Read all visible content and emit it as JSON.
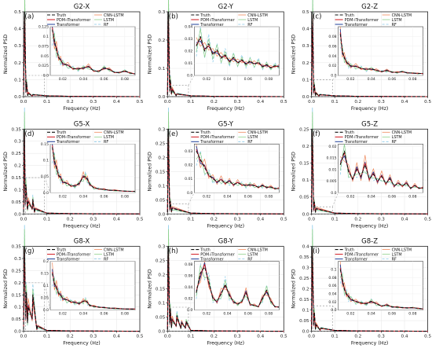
{
  "figure": {
    "x_label": "Frequency (Hz)",
    "y_label": "Normalized PSD",
    "legend": [
      "Truth",
      "PDM-iTransformer",
      "Transformer",
      "CNN-LSTM",
      "LSTM",
      "RF"
    ],
    "colors": {
      "Truth": "#111111",
      "PDM-iTransformer": "#d1141b",
      "Transformer": "#1f3f99",
      "CNN-LSTM": "#f08a5d",
      "LSTM": "#8fd18a",
      "RF": "#87c9e8"
    }
  },
  "chart_data": [
    {
      "type": "line",
      "panel": "(a)",
      "title": "G2-X",
      "xlim": [
        0,
        0.5
      ],
      "ylim": [
        0,
        0.5
      ],
      "yticks": [
        0.0,
        0.1,
        0.2,
        0.3,
        0.4,
        0.5
      ],
      "xticks": [
        0.0,
        0.1,
        0.2,
        0.3,
        0.4,
        0.5
      ],
      "peak": 0.5,
      "peak_freq": 0.005,
      "lines": [
        [
          0.013,
          0.085
        ],
        [
          0.021,
          0.02
        ],
        [
          0.04,
          0.012
        ]
      ],
      "inset": {
        "xlim": [
          0.008,
          0.09
        ],
        "ylim": [
          0,
          0.125
        ],
        "yticks": [
          0.0,
          0.025,
          0.05,
          0.075,
          0.1,
          0.125
        ],
        "xticks": [
          0.02,
          0.04,
          0.06,
          0.08
        ],
        "x": [
          0.01,
          0.012,
          0.014,
          0.016,
          0.018,
          0.02,
          0.025,
          0.03,
          0.035,
          0.04,
          0.045,
          0.05,
          0.055,
          0.06,
          0.065,
          0.07,
          0.075,
          0.08,
          0.085,
          0.09
        ],
        "truth": [
          0.118,
          0.09,
          0.065,
          0.048,
          0.038,
          0.032,
          0.025,
          0.018,
          0.016,
          0.02,
          0.022,
          0.012,
          0.01,
          0.02,
          0.015,
          0.008,
          0.007,
          0.012,
          0.006,
          0.004
        ]
      }
    },
    {
      "type": "line",
      "panel": "(b)",
      "title": "G2-Y",
      "xlim": [
        0,
        0.5
      ],
      "ylim": [
        0,
        0.3
      ],
      "yticks": [
        0.0,
        0.1,
        0.2,
        0.3
      ],
      "xticks": [
        0.0,
        0.1,
        0.2,
        0.3,
        0.4,
        0.5
      ],
      "peak": 0.3,
      "peak_freq": 0.004,
      "lines": [
        [
          0.012,
          0.06
        ],
        [
          0.02,
          0.025
        ],
        [
          0.04,
          0.01
        ]
      ],
      "inset": {
        "xlim": [
          0.008,
          0.09
        ],
        "ylim": [
          0,
          0.04
        ],
        "yticks": [
          0.0,
          0.01,
          0.02,
          0.03,
          0.04
        ],
        "xticks": [
          0.02,
          0.04,
          0.06,
          0.08
        ],
        "x": [
          0.01,
          0.014,
          0.018,
          0.022,
          0.026,
          0.03,
          0.034,
          0.038,
          0.042,
          0.046,
          0.05,
          0.054,
          0.058,
          0.062,
          0.066,
          0.07,
          0.074,
          0.078,
          0.082,
          0.086,
          0.09
        ],
        "truth": [
          0.024,
          0.032,
          0.02,
          0.026,
          0.017,
          0.021,
          0.014,
          0.017,
          0.011,
          0.015,
          0.01,
          0.013,
          0.009,
          0.012,
          0.009,
          0.011,
          0.007,
          0.009,
          0.006,
          0.008,
          0.007
        ]
      }
    },
    {
      "type": "line",
      "panel": "(c)",
      "title": "G2-Z",
      "xlim": [
        0,
        0.5
      ],
      "ylim": [
        0,
        0.5
      ],
      "yticks": [
        0.0,
        0.1,
        0.2,
        0.3,
        0.4,
        0.5
      ],
      "xticks": [
        0.0,
        0.1,
        0.2,
        0.3,
        0.4,
        0.5
      ],
      "peak": 0.5,
      "peak_freq": 0.005,
      "lines": [
        [
          0.012,
          0.07
        ],
        [
          0.02,
          0.02
        ],
        [
          0.035,
          0.012
        ]
      ],
      "inset": {
        "xlim": [
          0.008,
          0.09
        ],
        "ylim": [
          0,
          0.1
        ],
        "yticks": [
          0.0,
          0.02,
          0.04,
          0.06,
          0.08
        ],
        "xticks": [
          0.02,
          0.04,
          0.06,
          0.08
        ],
        "x": [
          0.01,
          0.012,
          0.014,
          0.016,
          0.018,
          0.02,
          0.025,
          0.03,
          0.035,
          0.04,
          0.045,
          0.05,
          0.055,
          0.06,
          0.065,
          0.07,
          0.075,
          0.08,
          0.085,
          0.09
        ],
        "truth": [
          0.085,
          0.05,
          0.035,
          0.028,
          0.022,
          0.02,
          0.018,
          0.015,
          0.012,
          0.014,
          0.01,
          0.008,
          0.01,
          0.007,
          0.006,
          0.008,
          0.005,
          0.005,
          0.004,
          0.004
        ]
      }
    },
    {
      "type": "line",
      "panel": "(d)",
      "title": "G5-X",
      "xlim": [
        0,
        0.5
      ],
      "ylim": [
        0,
        0.35
      ],
      "yticks": [
        0.0,
        0.05,
        0.1,
        0.15,
        0.2,
        0.25,
        0.3,
        0.35
      ],
      "xticks": [
        0.0,
        0.1,
        0.2,
        0.3,
        0.4,
        0.5
      ],
      "peak": 0.35,
      "peak_freq": 0.004,
      "lines": [
        [
          0.01,
          0.12
        ],
        [
          0.02,
          0.05
        ],
        [
          0.04,
          0.06
        ],
        [
          0.05,
          0.02
        ]
      ],
      "inset": {
        "xlim": [
          0.008,
          0.09
        ],
        "ylim": [
          0,
          0.15
        ],
        "yticks": [
          0.0,
          0.05,
          0.1,
          0.15
        ],
        "xticks": [
          0.02,
          0.04,
          0.06,
          0.08
        ],
        "x": [
          0.01,
          0.012,
          0.014,
          0.016,
          0.018,
          0.02,
          0.024,
          0.028,
          0.032,
          0.036,
          0.04,
          0.042,
          0.044,
          0.046,
          0.05,
          0.055,
          0.06,
          0.065,
          0.07,
          0.08,
          0.09
        ],
        "truth": [
          0.14,
          0.1,
          0.075,
          0.055,
          0.045,
          0.035,
          0.028,
          0.022,
          0.02,
          0.03,
          0.048,
          0.05,
          0.04,
          0.028,
          0.015,
          0.012,
          0.01,
          0.008,
          0.007,
          0.005,
          0.004
        ]
      }
    },
    {
      "type": "line",
      "panel": "(e)",
      "title": "G5-Y",
      "xlim": [
        0,
        0.5
      ],
      "ylim": [
        0,
        0.3
      ],
      "yticks": [
        0.0,
        0.05,
        0.1,
        0.15,
        0.2,
        0.25,
        0.3
      ],
      "xticks": [
        0.0,
        0.1,
        0.2,
        0.3,
        0.4,
        0.5
      ],
      "peak": 0.3,
      "peak_freq": 0.004,
      "lines": [
        [
          0.012,
          0.045
        ],
        [
          0.02,
          0.02
        ]
      ],
      "inset": {
        "xlim": [
          0.008,
          0.09
        ],
        "ylim": [
          0,
          0.035
        ],
        "yticks": [
          0.0,
          0.01,
          0.02,
          0.03
        ],
        "xticks": [
          0.02,
          0.04,
          0.06,
          0.08
        ],
        "x": [
          0.01,
          0.014,
          0.018,
          0.022,
          0.026,
          0.03,
          0.034,
          0.038,
          0.042,
          0.046,
          0.05,
          0.054,
          0.058,
          0.062,
          0.066,
          0.07,
          0.074,
          0.078,
          0.082,
          0.086,
          0.09
        ],
        "truth": [
          0.03,
          0.024,
          0.018,
          0.013,
          0.01,
          0.008,
          0.009,
          0.007,
          0.008,
          0.006,
          0.007,
          0.006,
          0.005,
          0.006,
          0.005,
          0.004,
          0.005,
          0.004,
          0.004,
          0.003,
          0.003
        ]
      }
    },
    {
      "type": "line",
      "panel": "(f)",
      "title": "G5-Z",
      "xlim": [
        0,
        0.5
      ],
      "ylim": [
        0,
        0.25
      ],
      "yticks": [
        0.0,
        0.05,
        0.1,
        0.15,
        0.2,
        0.25
      ],
      "xticks": [
        0.0,
        0.1,
        0.2,
        0.3,
        0.4,
        0.5
      ],
      "peak": 0.25,
      "peak_freq": 0.004,
      "lines": [
        [
          0.012,
          0.035
        ],
        [
          0.02,
          0.015
        ]
      ],
      "inset": {
        "xlim": [
          0.008,
          0.09
        ],
        "ylim": [
          0,
          0.021
        ],
        "yticks": [
          0.0,
          0.005,
          0.01,
          0.015,
          0.02
        ],
        "xticks": [
          0.02,
          0.04,
          0.06,
          0.08
        ],
        "x": [
          0.01,
          0.014,
          0.018,
          0.022,
          0.026,
          0.03,
          0.034,
          0.038,
          0.042,
          0.046,
          0.05,
          0.054,
          0.058,
          0.062,
          0.066,
          0.07,
          0.074,
          0.078,
          0.082,
          0.086,
          0.09
        ],
        "truth": [
          0.012,
          0.018,
          0.009,
          0.006,
          0.01,
          0.007,
          0.012,
          0.006,
          0.008,
          0.005,
          0.007,
          0.004,
          0.006,
          0.003,
          0.004,
          0.003,
          0.004,
          0.002,
          0.003,
          0.002,
          0.002
        ]
      }
    },
    {
      "type": "line",
      "panel": "(g)",
      "title": "G8-X",
      "xlim": [
        0,
        0.5
      ],
      "ylim": [
        0,
        0.35
      ],
      "yticks": [
        0.0,
        0.05,
        0.1,
        0.15,
        0.2,
        0.25,
        0.3,
        0.35
      ],
      "xticks": [
        0.0,
        0.1,
        0.2,
        0.3,
        0.4,
        0.5
      ],
      "peak": 0.35,
      "peak_freq": 0.004,
      "lines": [
        [
          0.012,
          0.16
        ],
        [
          0.02,
          0.1
        ],
        [
          0.04,
          0.15
        ],
        [
          0.06,
          0.02
        ]
      ],
      "inset": {
        "xlim": [
          0.008,
          0.09
        ],
        "ylim": [
          0,
          0.2
        ],
        "yticks": [
          0.0,
          0.05,
          0.1,
          0.15,
          0.2
        ],
        "xticks": [
          0.02,
          0.04,
          0.06,
          0.08
        ],
        "x": [
          0.01,
          0.012,
          0.014,
          0.016,
          0.018,
          0.02,
          0.024,
          0.028,
          0.032,
          0.036,
          0.04,
          0.042,
          0.044,
          0.046,
          0.05,
          0.055,
          0.06,
          0.065,
          0.07,
          0.08,
          0.09
        ],
        "truth": [
          0.15,
          0.11,
          0.09,
          0.07,
          0.06,
          0.05,
          0.04,
          0.035,
          0.03,
          0.028,
          0.035,
          0.04,
          0.03,
          0.02,
          0.015,
          0.012,
          0.01,
          0.008,
          0.007,
          0.005,
          0.004
        ]
      }
    },
    {
      "type": "line",
      "panel": "(h)",
      "title": "G8-Y",
      "xlim": [
        0,
        0.5
      ],
      "ylim": [
        0,
        0.3
      ],
      "yticks": [
        0.0,
        0.05,
        0.1,
        0.15,
        0.2,
        0.25,
        0.3
      ],
      "xticks": [
        0.0,
        0.1,
        0.2,
        0.3,
        0.4,
        0.5
      ],
      "peak": 0.3,
      "peak_freq": 0.004,
      "lines": [
        [
          0.012,
          0.08
        ],
        [
          0.02,
          0.04
        ],
        [
          0.04,
          0.055
        ],
        [
          0.06,
          0.03
        ],
        [
          0.08,
          0.035
        ]
      ],
      "inset": {
        "xlim": [
          0.008,
          0.09
        ],
        "ylim": [
          0,
          0.085
        ],
        "yticks": [
          0.0,
          0.02,
          0.04,
          0.06,
          0.08
        ],
        "xticks": [
          0.02,
          0.04,
          0.06,
          0.08
        ],
        "x": [
          0.01,
          0.014,
          0.018,
          0.022,
          0.026,
          0.03,
          0.034,
          0.038,
          0.042,
          0.046,
          0.05,
          0.054,
          0.058,
          0.062,
          0.066,
          0.07,
          0.074,
          0.078,
          0.082,
          0.086,
          0.09
        ],
        "truth": [
          0.03,
          0.065,
          0.075,
          0.05,
          0.02,
          0.015,
          0.028,
          0.045,
          0.025,
          0.015,
          0.01,
          0.015,
          0.03,
          0.01,
          0.008,
          0.006,
          0.02,
          0.035,
          0.015,
          0.006,
          0.005
        ]
      }
    },
    {
      "type": "line",
      "panel": "(i)",
      "title": "G8-Z",
      "xlim": [
        0,
        0.5
      ],
      "ylim": [
        0,
        0.4
      ],
      "yticks": [
        0.0,
        0.05,
        0.1,
        0.15,
        0.2,
        0.25,
        0.3,
        0.35,
        0.4
      ],
      "xticks": [
        0.0,
        0.1,
        0.2,
        0.3,
        0.4,
        0.5
      ],
      "peak": 0.4,
      "peak_freq": 0.004,
      "lines": [
        [
          0.012,
          0.09
        ],
        [
          0.02,
          0.03
        ],
        [
          0.04,
          0.015
        ]
      ],
      "inset": {
        "xlim": [
          0.008,
          0.09
        ],
        "ylim": [
          0,
          0.12
        ],
        "yticks": [
          0.0,
          0.02,
          0.04,
          0.06,
          0.08,
          0.1
        ],
        "xticks": [
          0.02,
          0.04,
          0.06,
          0.08
        ],
        "x": [
          0.01,
          0.012,
          0.014,
          0.016,
          0.018,
          0.02,
          0.025,
          0.03,
          0.035,
          0.04,
          0.045,
          0.05,
          0.055,
          0.06,
          0.065,
          0.07,
          0.075,
          0.08,
          0.085,
          0.09
        ],
        "truth": [
          0.1,
          0.075,
          0.05,
          0.04,
          0.032,
          0.028,
          0.02,
          0.018,
          0.015,
          0.022,
          0.015,
          0.01,
          0.012,
          0.008,
          0.007,
          0.006,
          0.005,
          0.006,
          0.004,
          0.003
        ]
      }
    }
  ]
}
